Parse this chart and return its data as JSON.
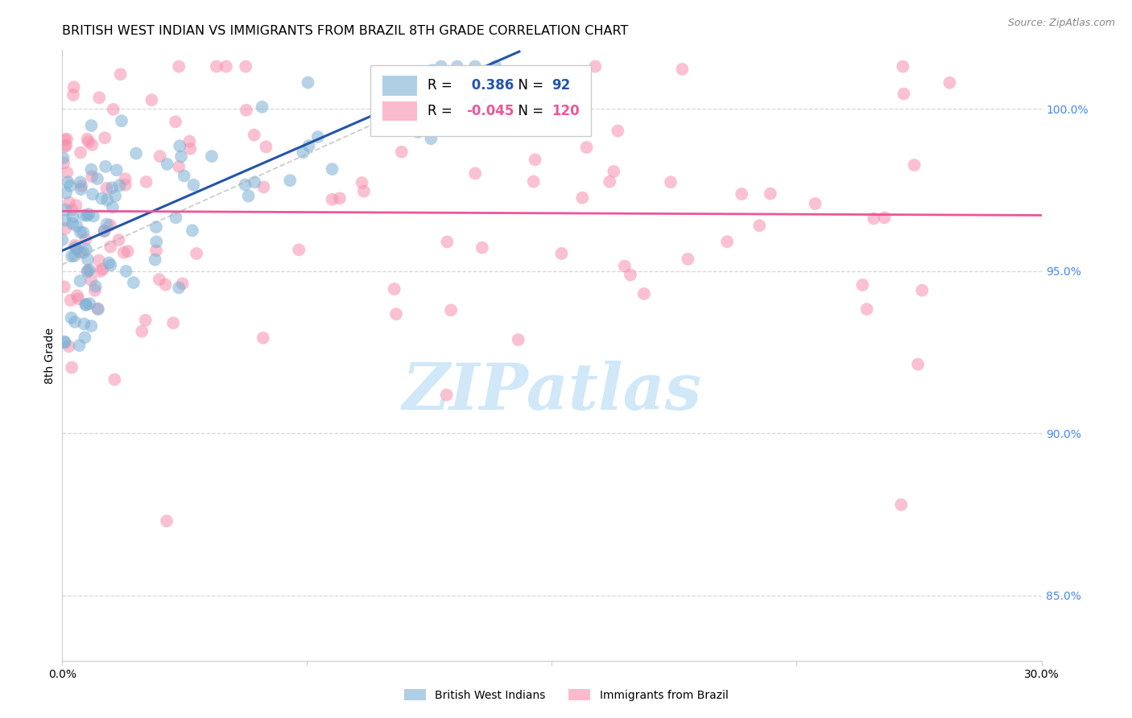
{
  "title": "BRITISH WEST INDIAN VS IMMIGRANTS FROM BRAZIL 8TH GRADE CORRELATION CHART",
  "source": "Source: ZipAtlas.com",
  "ylabel": "8th Grade",
  "xmin": 0.0,
  "xmax": 30.0,
  "ymin": 83.0,
  "ymax": 101.8,
  "blue_R": 0.386,
  "blue_N": 92,
  "pink_R": -0.045,
  "pink_N": 120,
  "blue_label": "British West Indians",
  "pink_label": "Immigrants from Brazil",
  "blue_color": "#7BAFD4",
  "pink_color": "#F78FAD",
  "blue_trend_color": "#2255AA",
  "pink_trend_color": "#EE5599",
  "watermark_color": "#D0E8F8",
  "watermark": "ZIPatlas",
  "title_fontsize": 11.5,
  "source_fontsize": 9,
  "right_tick_color": "#4488EE",
  "grid_color": "#CCCCCC",
  "background_color": "#FFFFFF",
  "right_yticks": [
    85.0,
    90.0,
    95.0,
    100.0
  ],
  "right_ytick_labels": [
    "85.0%",
    "90.0%",
    "95.0%",
    "100.0%"
  ]
}
